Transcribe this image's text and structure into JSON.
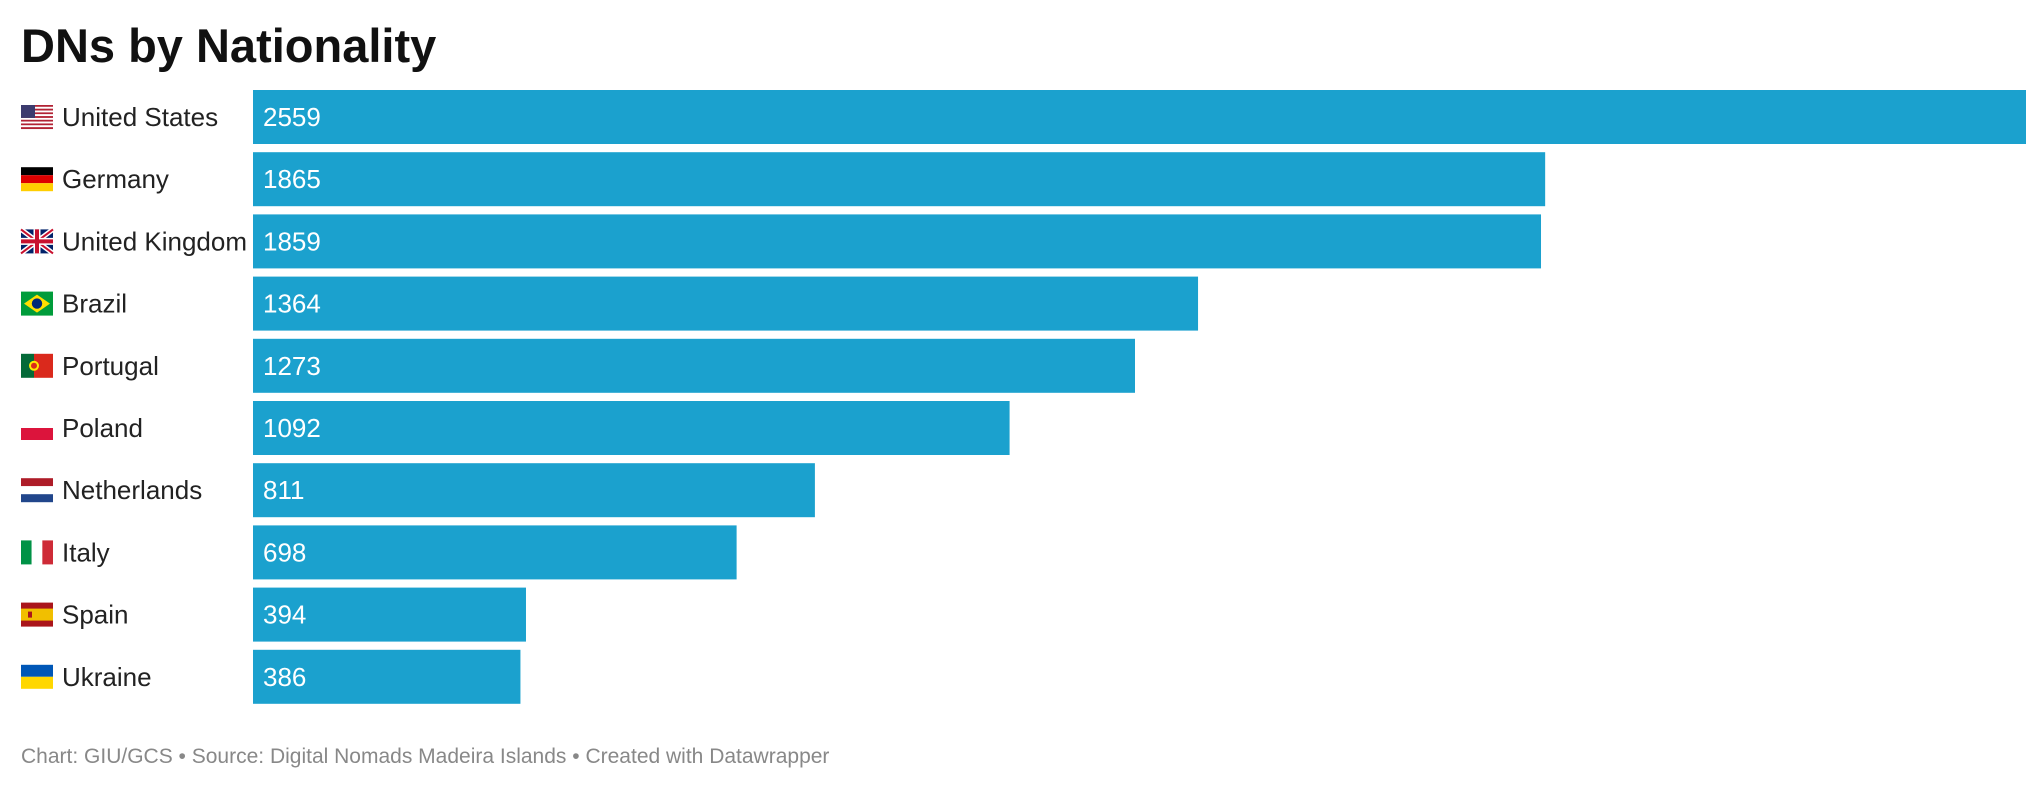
{
  "chart_data": {
    "type": "bar",
    "orientation": "horizontal",
    "title": "DNs by Nationality",
    "categories": [
      "United States",
      "Germany",
      "United Kingdom",
      "Brazil",
      "Portugal",
      "Poland",
      "Netherlands",
      "Italy",
      "Spain",
      "Ukraine"
    ],
    "values": [
      2559,
      1865,
      1859,
      1364,
      1273,
      1092,
      811,
      698,
      394,
      386
    ],
    "flags": [
      "us-flag-icon",
      "de-flag-icon",
      "gb-flag-icon",
      "br-flag-icon",
      "pt-flag-icon",
      "pl-flag-icon",
      "nl-flag-icon",
      "it-flag-icon",
      "es-flag-icon",
      "ua-flag-icon"
    ],
    "xlim": [
      0,
      2559
    ],
    "bar_color": "#1ba1ce",
    "grid": false,
    "legend": "none"
  },
  "footer": {
    "credit": "Chart: GIU/GCS",
    "separator": "•",
    "source": "Source: Digital Nomads Madeira Islands",
    "tool": "Created with Datawrapper"
  }
}
